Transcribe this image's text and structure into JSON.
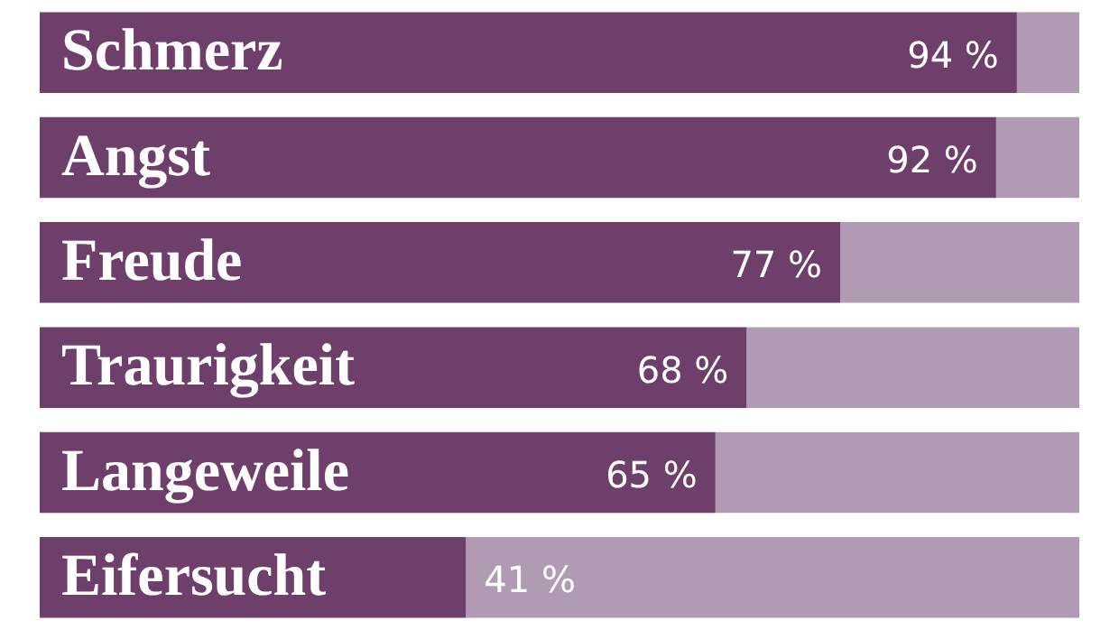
{
  "chart_data": {
    "type": "bar",
    "orientation": "horizontal",
    "stacked": true,
    "tick_labels": false,
    "legend": false,
    "categories": [
      "Schmerz",
      "Angst",
      "Freude",
      "Traurigkeit",
      "Langeweile",
      "Eifersucht"
    ],
    "xlim": [
      0,
      100
    ],
    "series": [
      {
        "color": "#6f3f6c",
        "values": [
          94,
          92,
          77,
          68,
          65,
          41
        ],
        "value_labels": [
          "94 %",
          "92 %",
          "77 %",
          "68 %",
          "65 %",
          "41 %"
        ]
      },
      {
        "color": "#b09ab4",
        "values": [
          6,
          8,
          23,
          32,
          35,
          59
        ]
      }
    ]
  }
}
